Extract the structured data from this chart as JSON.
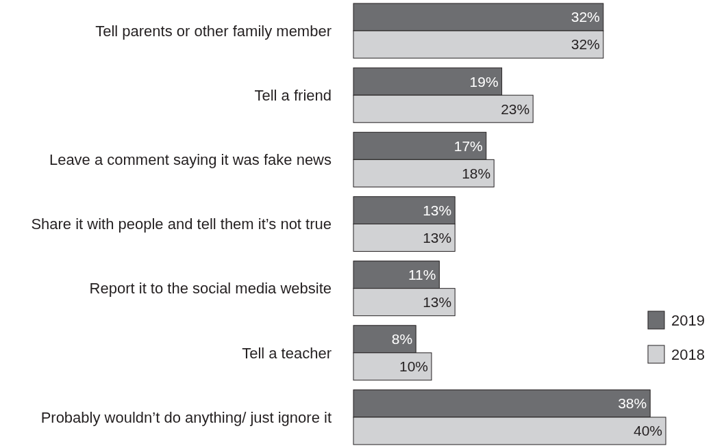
{
  "chart_data": {
    "type": "bar",
    "orientation": "horizontal",
    "categories": [
      "Tell parents or other family member",
      "Tell a friend",
      "Leave a comment saying it was fake news",
      "Share it with people and tell them it’s not true",
      "Report it to the social media website",
      "Tell a teacher",
      "Probably wouldn’t do anything/ just ignore it"
    ],
    "series": [
      {
        "name": "2019",
        "color": "#6d6e71",
        "values": [
          32,
          19,
          17,
          13,
          11,
          8,
          38
        ],
        "value_labels": [
          "32%",
          "19%",
          "17%",
          "13%",
          "11%",
          "8%",
          "38%"
        ]
      },
      {
        "name": "2018",
        "color": "#d1d2d4",
        "values": [
          32,
          23,
          18,
          13,
          13,
          10,
          40
        ],
        "value_labels": [
          "32%",
          "23%",
          "18%",
          "13%",
          "13%",
          "10%",
          "40%"
        ]
      }
    ],
    "legend": "right"
  }
}
